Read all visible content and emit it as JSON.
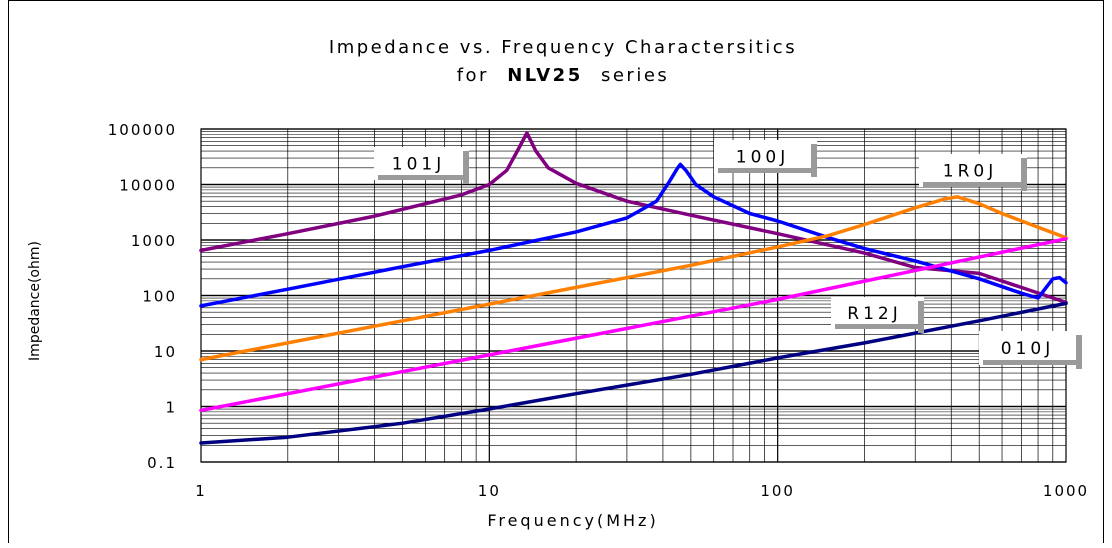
{
  "chart_data": {
    "type": "line",
    "title_line1": "Impedance vs. Frequency Charactersitics",
    "title_line2_prefix": "for",
    "title_line2_bold": "NLV25",
    "title_line2_suffix": "series",
    "xlabel": "Frequency(MHz)",
    "ylabel": "Impedance(ohm)",
    "xscale": "log",
    "yscale": "log",
    "xlim": [
      1,
      1000
    ],
    "ylim": [
      0.1,
      100000
    ],
    "x_ticks": [
      "1",
      "10",
      "100",
      "1000"
    ],
    "y_ticks": [
      "0.1",
      "1",
      "10",
      "100",
      "1000",
      "10000",
      "100000"
    ],
    "grid": true,
    "series": [
      {
        "name": "101J",
        "color": "#800080",
        "points": [
          [
            1,
            650
          ],
          [
            2,
            1300
          ],
          [
            4,
            2700
          ],
          [
            8,
            6500
          ],
          [
            10,
            10000
          ],
          [
            11.5,
            18000
          ],
          [
            12.5,
            40000
          ],
          [
            13.5,
            85000
          ],
          [
            14.5,
            40000
          ],
          [
            16,
            20000
          ],
          [
            20,
            10500
          ],
          [
            30,
            5000
          ],
          [
            50,
            2800
          ],
          [
            100,
            1300
          ],
          [
            200,
            580
          ],
          [
            300,
            320
          ],
          [
            400,
            280
          ],
          [
            500,
            250
          ],
          [
            700,
            140
          ],
          [
            1000,
            75
          ]
        ]
      },
      {
        "name": "100J",
        "color": "#0000ff",
        "points": [
          [
            1,
            65
          ],
          [
            2,
            130
          ],
          [
            5,
            330
          ],
          [
            10,
            650
          ],
          [
            20,
            1400
          ],
          [
            30,
            2500
          ],
          [
            38,
            5000
          ],
          [
            42,
            11000
          ],
          [
            45,
            20000
          ],
          [
            46,
            23000
          ],
          [
            48,
            18000
          ],
          [
            52,
            10000
          ],
          [
            60,
            6000
          ],
          [
            80,
            3000
          ],
          [
            100,
            2200
          ],
          [
            150,
            1100
          ],
          [
            200,
            700
          ],
          [
            300,
            420
          ],
          [
            500,
            200
          ],
          [
            700,
            110
          ],
          [
            800,
            90
          ],
          [
            900,
            200
          ],
          [
            950,
            210
          ],
          [
            1000,
            170
          ]
        ]
      },
      {
        "name": "1R0J",
        "color": "#ff8000",
        "points": [
          [
            1,
            7
          ],
          [
            2,
            14
          ],
          [
            5,
            35
          ],
          [
            10,
            70
          ],
          [
            20,
            140
          ],
          [
            50,
            350
          ],
          [
            100,
            750
          ],
          [
            150,
            1200
          ],
          [
            200,
            1900
          ],
          [
            300,
            3800
          ],
          [
            380,
            5500
          ],
          [
            420,
            6000
          ],
          [
            500,
            4500
          ],
          [
            600,
            3000
          ],
          [
            800,
            1700
          ],
          [
            1000,
            1100
          ]
        ]
      },
      {
        "name": "R12J",
        "color": "#ff00ff",
        "points": [
          [
            1,
            0.85
          ],
          [
            10,
            8.5
          ],
          [
            100,
            85
          ],
          [
            1000,
            1050
          ]
        ]
      },
      {
        "name": "010J",
        "color": "#000080",
        "points": [
          [
            1,
            0.22
          ],
          [
            2,
            0.28
          ],
          [
            5,
            0.5
          ],
          [
            10,
            0.9
          ],
          [
            20,
            1.7
          ],
          [
            50,
            3.8
          ],
          [
            100,
            7.5
          ],
          [
            200,
            14
          ],
          [
            500,
            35
          ],
          [
            1000,
            72
          ]
        ]
      }
    ],
    "annotations": [
      {
        "series": "101J",
        "label": "101J"
      },
      {
        "series": "100J",
        "label": "100J"
      },
      {
        "series": "1R0J",
        "label": "1R0J"
      },
      {
        "series": "R12J",
        "label": "R12J"
      },
      {
        "series": "010J",
        "label": "010J"
      }
    ]
  }
}
